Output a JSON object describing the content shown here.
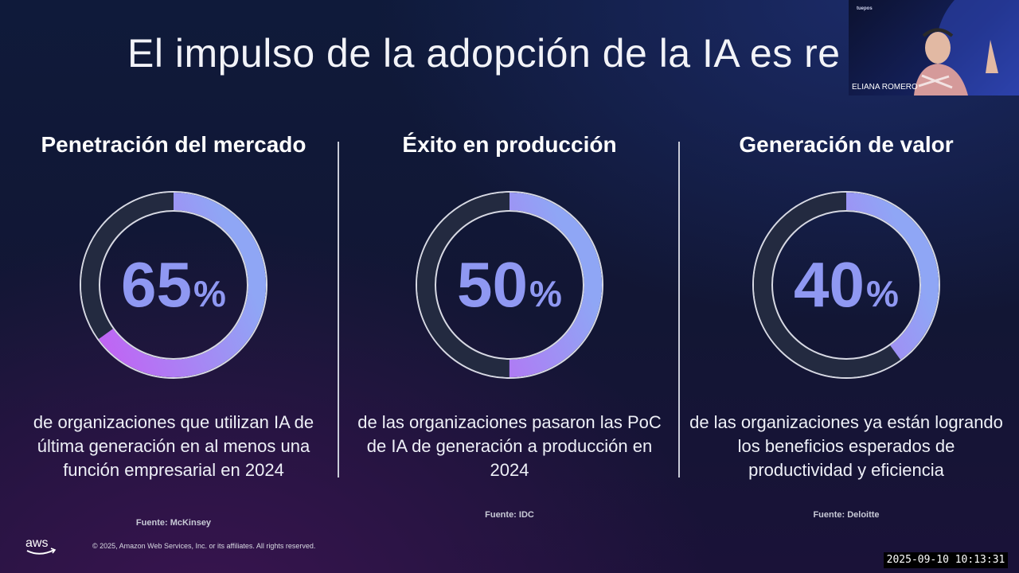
{
  "slide": {
    "title": "El impulso de la adopción de la IA es re",
    "columns": [
      {
        "heading": "Penetración del mercado",
        "value": "65",
        "percent_sign": "%",
        "fraction": 0.65,
        "description": "de organizaciones que utilizan IA de última generación en al menos una función empresarial en 2024",
        "source": "Fuente: McKinsey"
      },
      {
        "heading": "Éxito en producción",
        "value": "50",
        "percent_sign": "%",
        "fraction": 0.5,
        "description": "de las organizaciones pasaron las PoC de IA de generación a producción en 2024",
        "source": "Fuente: IDC"
      },
      {
        "heading": "Generación de valor",
        "value": "40",
        "percent_sign": "%",
        "fraction": 0.4,
        "description": "de las organizaciones ya están logrando los beneficios esperados de productividad y eficiencia",
        "source": "Fuente: Deloitte"
      }
    ],
    "footer": {
      "logo_text": "aws",
      "copyright": "© 2025, Amazon Web Services, Inc. or its affiliates. All rights reserved."
    }
  },
  "video_tile": {
    "brand": "tuepos",
    "speaker_name": "ELIANA ROMERO"
  },
  "timestamp": "2025-09-10  10:13:31",
  "colors": {
    "ring_track": "#232a40",
    "ring_gradient_start": "#c65cf3",
    "ring_gradient_end": "#8fa6f5",
    "percent_text": "#8f98f2"
  }
}
